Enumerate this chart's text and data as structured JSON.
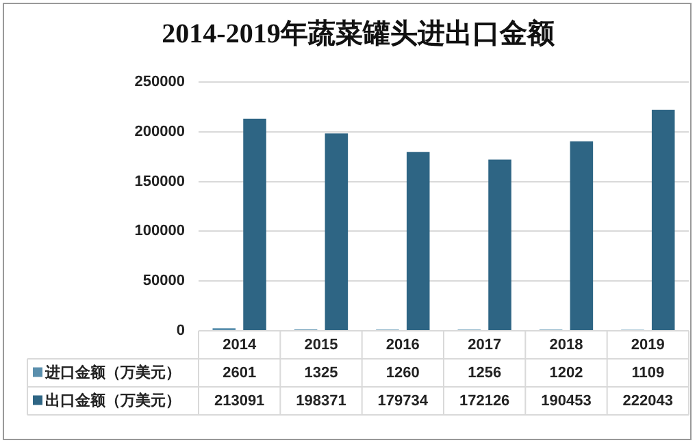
{
  "chart_data": {
    "type": "bar",
    "title": "2014-2019年蔬菜罐头进出口金额",
    "categories": [
      "2014",
      "2015",
      "2016",
      "2017",
      "2018",
      "2019"
    ],
    "series": [
      {
        "name": "进口金额（万美元）",
        "color": "#5a8fad",
        "values": [
          2601,
          1325,
          1260,
          1256,
          1202,
          1109
        ]
      },
      {
        "name": "出口金额（万美元）",
        "color": "#2e6584",
        "values": [
          213091,
          198371,
          179734,
          172126,
          190453,
          222043
        ]
      }
    ],
    "ylim": [
      0,
      250000
    ],
    "yticks": [
      0,
      50000,
      100000,
      150000,
      200000,
      250000
    ],
    "grid": "y",
    "legend": "bottom",
    "data_labels": true
  }
}
